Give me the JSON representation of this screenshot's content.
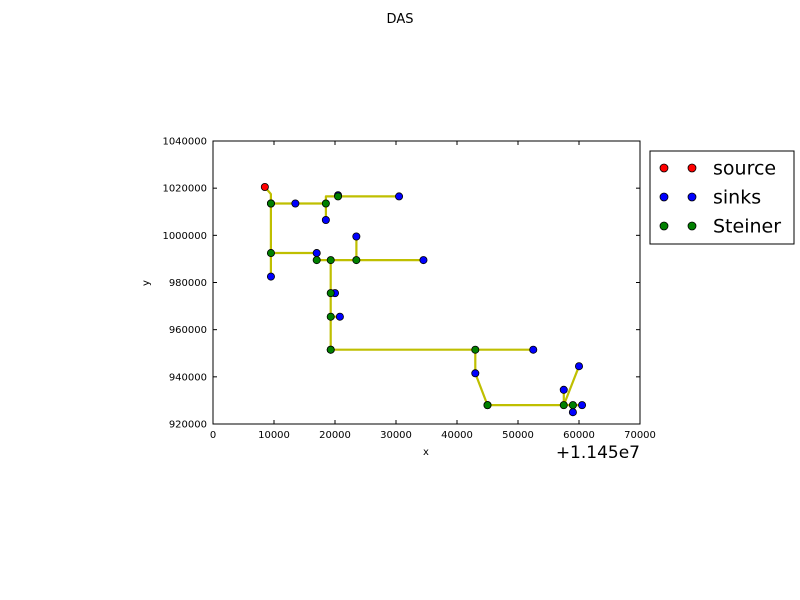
{
  "chart_data": {
    "type": "scatter",
    "title": "DAS",
    "xlabel": "x",
    "ylabel": "y",
    "x_offset_label": "+1.145e7",
    "xlim": [
      0,
      70000
    ],
    "ylim": [
      920000,
      1040000
    ],
    "x_ticks": [
      0,
      10000,
      20000,
      30000,
      40000,
      50000,
      60000,
      70000
    ],
    "x_tick_labels": [
      "0",
      "10000",
      "20000",
      "30000",
      "40000",
      "50000",
      "60000",
      "70000"
    ],
    "y_ticks": [
      920000,
      940000,
      960000,
      980000,
      1000000,
      1020000,
      1040000
    ],
    "y_tick_labels": [
      "920000",
      "940000",
      "960000",
      "980000",
      "1000000",
      "1020000",
      "1040000"
    ],
    "legend_position": "outside-right",
    "legend": [
      {
        "label": "source",
        "color": "#ff0000"
      },
      {
        "label": "sinks",
        "color": "#0000ff"
      },
      {
        "label": "Steiner",
        "color": "#008000"
      }
    ],
    "edge_color": "#bfbf00",
    "source": [
      [
        8500,
        1020500
      ]
    ],
    "sinks": [
      [
        9500,
        1013500
      ],
      [
        13500,
        1013500
      ],
      [
        18500,
        1006500
      ],
      [
        20500,
        1017000
      ],
      [
        30500,
        1016500
      ],
      [
        9500,
        982500
      ],
      [
        17000,
        992500
      ],
      [
        23500,
        999500
      ],
      [
        34500,
        989500
      ],
      [
        20000,
        975500
      ],
      [
        20800,
        965500
      ],
      [
        19300,
        951500
      ],
      [
        52500,
        951500
      ],
      [
        43000,
        941500
      ],
      [
        45000,
        928000
      ],
      [
        57500,
        934500
      ],
      [
        60000,
        944500
      ],
      [
        59000,
        925000
      ],
      [
        60500,
        928000
      ]
    ],
    "steiner": [
      [
        9500,
        1013500
      ],
      [
        18500,
        1013500
      ],
      [
        20500,
        1016500
      ],
      [
        9500,
        992500
      ],
      [
        17000,
        989500
      ],
      [
        19300,
        989500
      ],
      [
        23500,
        989500
      ],
      [
        19300,
        975500
      ],
      [
        19300,
        965500
      ],
      [
        19300,
        951500
      ],
      [
        43000,
        951500
      ],
      [
        45000,
        928000
      ],
      [
        57500,
        928000
      ],
      [
        59000,
        928000
      ]
    ],
    "edges": [
      [
        [
          8500,
          1020500
        ],
        [
          9500,
          1017500
        ],
        [
          9500,
          1013500
        ]
      ],
      [
        [
          9500,
          1013500
        ],
        [
          18500,
          1013500
        ]
      ],
      [
        [
          18500,
          1013500
        ],
        [
          18500,
          1006500
        ]
      ],
      [
        [
          18500,
          1013500
        ],
        [
          18500,
          1016500
        ],
        [
          30500,
          1016500
        ]
      ],
      [
        [
          9500,
          1013500
        ],
        [
          9500,
          982500
        ]
      ],
      [
        [
          9500,
          992500
        ],
        [
          17000,
          992500
        ],
        [
          17000,
          989500
        ]
      ],
      [
        [
          17000,
          989500
        ],
        [
          34500,
          989500
        ]
      ],
      [
        [
          23500,
          989500
        ],
        [
          23500,
          999500
        ]
      ],
      [
        [
          19300,
          989500
        ],
        [
          19300,
          951500
        ]
      ],
      [
        [
          19300,
          975500
        ],
        [
          20000,
          975500
        ]
      ],
      [
        [
          19300,
          965500
        ],
        [
          20800,
          965500
        ]
      ],
      [
        [
          19300,
          951500
        ],
        [
          52500,
          951500
        ]
      ],
      [
        [
          43000,
          951500
        ],
        [
          43000,
          941500
        ],
        [
          45000,
          928000
        ]
      ],
      [
        [
          45000,
          928000
        ],
        [
          60500,
          928000
        ]
      ],
      [
        [
          57500,
          928000
        ],
        [
          57500,
          934500
        ]
      ],
      [
        [
          57500,
          928000
        ],
        [
          60000,
          944500
        ]
      ],
      [
        [
          59000,
          928000
        ],
        [
          59000,
          925000
        ]
      ]
    ]
  }
}
